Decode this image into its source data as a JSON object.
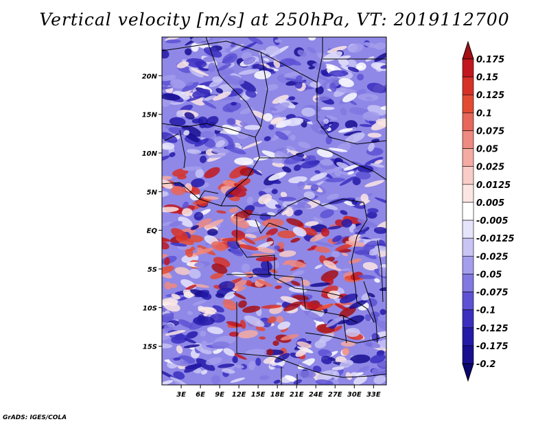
{
  "title": "Vertical velocity [m/s] at 250hPa, VT: 2019112700",
  "credit": "GrADS: IGES/COLA",
  "map": {
    "lat_labels": [
      "20N",
      "15N",
      "10N",
      "5N",
      "EQ",
      "5S",
      "10S",
      "15S"
    ],
    "lat_values": [
      20,
      15,
      10,
      5,
      0,
      -5,
      -10,
      -15
    ],
    "lon_labels": [
      "3E",
      "6E",
      "9E",
      "12E",
      "15E",
      "18E",
      "21E",
      "24E",
      "27E",
      "30E",
      "33E"
    ],
    "lon_values": [
      3,
      6,
      9,
      12,
      15,
      18,
      21,
      24,
      27,
      30,
      33
    ],
    "lon_range": [
      0,
      35
    ],
    "lat_range": [
      -20,
      25
    ]
  },
  "colorbar": {
    "labels": [
      "0.175",
      "0.15",
      "0.125",
      "0.1",
      "0.075",
      "0.05",
      "0.025",
      "0.0125",
      "0.005",
      "-0.005",
      "-0.0125",
      "-0.025",
      "-0.05",
      "-0.075",
      "-0.1",
      "-0.125",
      "-0.175",
      "-0.2"
    ],
    "colors": [
      "#a50f15",
      "#c2171e",
      "#d73027",
      "#e34a33",
      "#e8665a",
      "#ee8a80",
      "#f4aba3",
      "#f8ccc7",
      "#fce6e3",
      "#ffffff",
      "#e6e4fb",
      "#c8c4f4",
      "#a49eec",
      "#8178e0",
      "#5d52d3",
      "#3b2fc0",
      "#241aa8",
      "#170e90",
      "#0b0570"
    ]
  }
}
